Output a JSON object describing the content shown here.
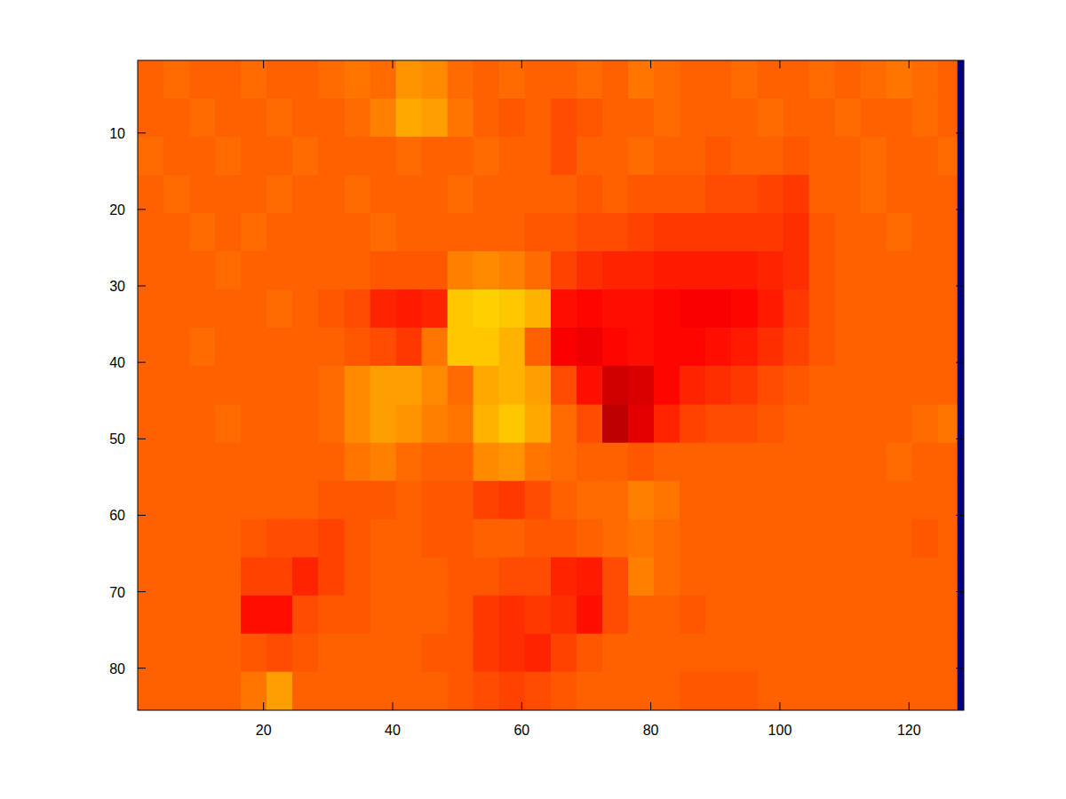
{
  "chart_data": {
    "type": "heatmap",
    "x_edges": [
      0.5,
      4.5,
      8.5,
      12.5,
      16.5,
      20.5,
      24.5,
      28.5,
      32.5,
      36.5,
      40.5,
      44.5,
      48.5,
      52.5,
      56.5,
      60.5,
      64.5,
      68.5,
      72.5,
      76.5,
      80.5,
      84.5,
      88.5,
      92.5,
      96.5,
      100.5,
      104.5,
      108.5,
      112.5,
      116.5,
      120.5,
      124.5,
      127.5,
      128.5
    ],
    "y_edges": [
      0.5,
      5.5,
      10.5,
      15.5,
      20.5,
      25.5,
      30.5,
      35.5,
      40.5,
      45.5,
      50.5,
      55.5,
      60.5,
      65.5,
      70.5,
      75.5,
      80.5,
      85.5
    ],
    "cells": [
      [
        0.78,
        0.77,
        0.78,
        0.78,
        0.77,
        0.78,
        0.78,
        0.77,
        0.76,
        0.77,
        0.73,
        0.74,
        0.77,
        0.78,
        0.77,
        0.78,
        0.78,
        0.77,
        0.78,
        0.76,
        0.77,
        0.78,
        0.78,
        0.77,
        0.78,
        0.78,
        0.77,
        0.78,
        0.77,
        0.76,
        0.77,
        0.78,
        0
      ],
      [
        0.78,
        0.78,
        0.77,
        0.78,
        0.78,
        0.77,
        0.78,
        0.78,
        0.77,
        0.75,
        0.71,
        0.72,
        0.76,
        0.78,
        0.79,
        0.78,
        0.8,
        0.79,
        0.78,
        0.78,
        0.77,
        0.78,
        0.78,
        0.78,
        0.77,
        0.78,
        0.78,
        0.77,
        0.78,
        0.78,
        0.77,
        0.78,
        0
      ],
      [
        0.77,
        0.78,
        0.78,
        0.77,
        0.78,
        0.78,
        0.77,
        0.78,
        0.78,
        0.78,
        0.77,
        0.78,
        0.78,
        0.77,
        0.78,
        0.78,
        0.8,
        0.78,
        0.78,
        0.77,
        0.78,
        0.78,
        0.79,
        0.78,
        0.78,
        0.79,
        0.78,
        0.78,
        0.77,
        0.78,
        0.78,
        0.77,
        0
      ],
      [
        0.78,
        0.77,
        0.78,
        0.78,
        0.78,
        0.77,
        0.78,
        0.78,
        0.77,
        0.78,
        0.78,
        0.78,
        0.77,
        0.78,
        0.78,
        0.78,
        0.78,
        0.79,
        0.78,
        0.79,
        0.79,
        0.79,
        0.8,
        0.8,
        0.81,
        0.82,
        0.78,
        0.78,
        0.77,
        0.78,
        0.78,
        0.78,
        0
      ],
      [
        0.78,
        0.78,
        0.77,
        0.78,
        0.77,
        0.78,
        0.78,
        0.78,
        0.78,
        0.77,
        0.78,
        0.78,
        0.78,
        0.78,
        0.78,
        0.79,
        0.79,
        0.8,
        0.8,
        0.81,
        0.82,
        0.82,
        0.82,
        0.82,
        0.82,
        0.83,
        0.79,
        0.78,
        0.78,
        0.77,
        0.78,
        0.78,
        0
      ],
      [
        0.78,
        0.78,
        0.78,
        0.77,
        0.78,
        0.78,
        0.78,
        0.78,
        0.78,
        0.79,
        0.79,
        0.79,
        0.75,
        0.74,
        0.75,
        0.77,
        0.81,
        0.83,
        0.84,
        0.84,
        0.85,
        0.85,
        0.85,
        0.85,
        0.84,
        0.83,
        0.79,
        0.78,
        0.78,
        0.78,
        0.78,
        0.78,
        0
      ],
      [
        0.78,
        0.78,
        0.78,
        0.78,
        0.78,
        0.77,
        0.78,
        0.79,
        0.8,
        0.84,
        0.85,
        0.84,
        0.68,
        0.67,
        0.68,
        0.7,
        0.86,
        0.87,
        0.86,
        0.86,
        0.87,
        0.88,
        0.88,
        0.87,
        0.85,
        0.82,
        0.79,
        0.78,
        0.78,
        0.78,
        0.78,
        0.78,
        0
      ],
      [
        0.78,
        0.78,
        0.77,
        0.78,
        0.78,
        0.78,
        0.78,
        0.78,
        0.79,
        0.8,
        0.82,
        0.76,
        0.68,
        0.68,
        0.7,
        0.78,
        0.88,
        0.89,
        0.87,
        0.86,
        0.87,
        0.87,
        0.86,
        0.85,
        0.83,
        0.81,
        0.79,
        0.78,
        0.78,
        0.78,
        0.78,
        0.78,
        0
      ],
      [
        0.78,
        0.78,
        0.78,
        0.78,
        0.78,
        0.78,
        0.78,
        0.77,
        0.74,
        0.72,
        0.72,
        0.74,
        0.77,
        0.71,
        0.7,
        0.72,
        0.8,
        0.86,
        0.92,
        0.91,
        0.87,
        0.84,
        0.83,
        0.82,
        0.8,
        0.79,
        0.78,
        0.78,
        0.78,
        0.78,
        0.78,
        0.78,
        0
      ],
      [
        0.78,
        0.78,
        0.78,
        0.77,
        0.78,
        0.78,
        0.78,
        0.77,
        0.74,
        0.72,
        0.73,
        0.75,
        0.76,
        0.7,
        0.68,
        0.71,
        0.77,
        0.8,
        0.94,
        0.9,
        0.84,
        0.81,
        0.8,
        0.8,
        0.79,
        0.78,
        0.78,
        0.78,
        0.78,
        0.78,
        0.77,
        0.76,
        0
      ],
      [
        0.78,
        0.78,
        0.78,
        0.78,
        0.78,
        0.78,
        0.78,
        0.78,
        0.76,
        0.75,
        0.77,
        0.78,
        0.78,
        0.74,
        0.73,
        0.76,
        0.77,
        0.78,
        0.78,
        0.79,
        0.78,
        0.78,
        0.78,
        0.78,
        0.78,
        0.78,
        0.78,
        0.78,
        0.78,
        0.77,
        0.78,
        0.78,
        0
      ],
      [
        0.78,
        0.78,
        0.78,
        0.78,
        0.78,
        0.78,
        0.78,
        0.79,
        0.79,
        0.79,
        0.78,
        0.79,
        0.79,
        0.81,
        0.82,
        0.8,
        0.78,
        0.77,
        0.77,
        0.75,
        0.76,
        0.78,
        0.78,
        0.78,
        0.78,
        0.78,
        0.78,
        0.78,
        0.78,
        0.78,
        0.78,
        0.78,
        0
      ],
      [
        0.78,
        0.78,
        0.78,
        0.78,
        0.79,
        0.8,
        0.8,
        0.81,
        0.79,
        0.78,
        0.78,
        0.79,
        0.79,
        0.78,
        0.78,
        0.79,
        0.79,
        0.78,
        0.77,
        0.76,
        0.77,
        0.78,
        0.78,
        0.78,
        0.78,
        0.78,
        0.78,
        0.78,
        0.78,
        0.78,
        0.79,
        0.78,
        0
      ],
      [
        0.78,
        0.78,
        0.78,
        0.78,
        0.81,
        0.81,
        0.84,
        0.81,
        0.79,
        0.78,
        0.78,
        0.78,
        0.79,
        0.79,
        0.8,
        0.8,
        0.84,
        0.85,
        0.8,
        0.75,
        0.77,
        0.78,
        0.78,
        0.78,
        0.78,
        0.78,
        0.78,
        0.78,
        0.78,
        0.78,
        0.78,
        0.78,
        0
      ],
      [
        0.78,
        0.78,
        0.78,
        0.78,
        0.86,
        0.86,
        0.8,
        0.79,
        0.79,
        0.78,
        0.78,
        0.78,
        0.79,
        0.82,
        0.83,
        0.82,
        0.83,
        0.86,
        0.8,
        0.78,
        0.78,
        0.79,
        0.78,
        0.78,
        0.78,
        0.78,
        0.78,
        0.78,
        0.78,
        0.78,
        0.78,
        0.78,
        0
      ],
      [
        0.78,
        0.78,
        0.78,
        0.78,
        0.79,
        0.8,
        0.79,
        0.78,
        0.78,
        0.78,
        0.78,
        0.79,
        0.79,
        0.82,
        0.83,
        0.84,
        0.81,
        0.79,
        0.78,
        0.78,
        0.78,
        0.78,
        0.78,
        0.78,
        0.78,
        0.78,
        0.78,
        0.78,
        0.78,
        0.78,
        0.78,
        0.78,
        0
      ],
      [
        0.78,
        0.78,
        0.78,
        0.78,
        0.76,
        0.72,
        0.78,
        0.78,
        0.78,
        0.78,
        0.78,
        0.78,
        0.79,
        0.8,
        0.81,
        0.8,
        0.79,
        0.78,
        0.78,
        0.78,
        0.78,
        0.79,
        0.79,
        0.79,
        0.78,
        0.78,
        0.78,
        0.78,
        0.78,
        0.78,
        0.78,
        0.78,
        0
      ]
    ],
    "clim": [
      0,
      1
    ],
    "xlim": [
      0.5,
      128.5
    ],
    "ylim": [
      0.5,
      85.5
    ],
    "xticks": [
      20,
      40,
      60,
      80,
      100,
      120
    ],
    "yticks": [
      10,
      20,
      30,
      40,
      50,
      60,
      70,
      80
    ]
  }
}
